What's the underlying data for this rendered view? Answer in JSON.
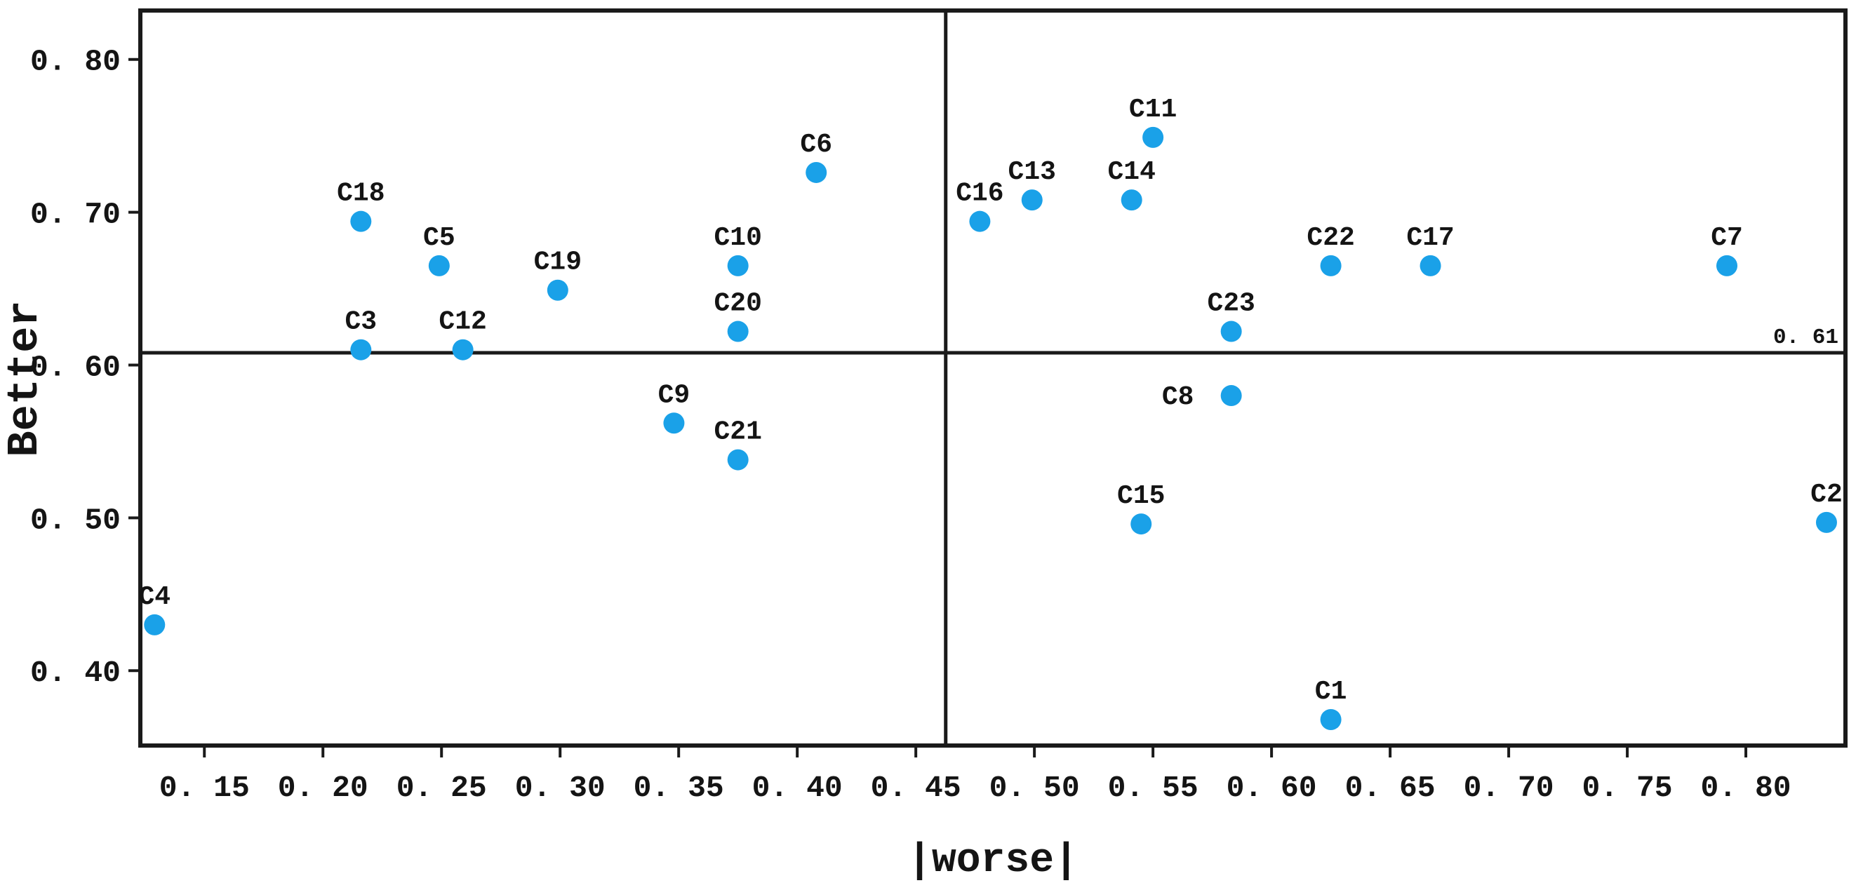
{
  "chart_data": {
    "type": "scatter",
    "title": "",
    "xlabel": "|worse|",
    "ylabel": "Better",
    "xlim": [
      0.123,
      0.842
    ],
    "ylim": [
      0.351,
      0.832
    ],
    "grid": false,
    "legend": "none",
    "point_color": "#1aa1e8",
    "line_color": "#1a1a1a",
    "x_ticks": [
      {
        "value": 0.15,
        "label": "0. 15"
      },
      {
        "value": 0.2,
        "label": "0. 20"
      },
      {
        "value": 0.25,
        "label": "0. 25"
      },
      {
        "value": 0.3,
        "label": "0. 30"
      },
      {
        "value": 0.35,
        "label": "0. 35"
      },
      {
        "value": 0.4,
        "label": "0. 40"
      },
      {
        "value": 0.45,
        "label": "0. 45"
      },
      {
        "value": 0.5,
        "label": "0. 50"
      },
      {
        "value": 0.55,
        "label": "0. 55"
      },
      {
        "value": 0.6,
        "label": "0. 60"
      },
      {
        "value": 0.65,
        "label": "0. 65"
      },
      {
        "value": 0.7,
        "label": "0. 70"
      },
      {
        "value": 0.75,
        "label": "0. 75"
      },
      {
        "value": 0.8,
        "label": "0. 80"
      }
    ],
    "y_ticks": [
      {
        "value": 0.4,
        "label": "0. 40"
      },
      {
        "value": 0.5,
        "label": "0. 50"
      },
      {
        "value": 0.6,
        "label": "0. 60"
      },
      {
        "value": 0.7,
        "label": "0. 70"
      },
      {
        "value": 0.8,
        "label": "0. 80"
      }
    ],
    "reference_lines": {
      "horizontal_y": 0.608,
      "horizontal_label": "0. 61",
      "vertical_x": 0.4626
    },
    "points": [
      {
        "label": "C1",
        "x": 0.625,
        "y": 0.368
      },
      {
        "label": "C2",
        "x": 0.834,
        "y": 0.497
      },
      {
        "label": "C3",
        "x": 0.216,
        "y": 0.61
      },
      {
        "label": "C4",
        "x": 0.129,
        "y": 0.43
      },
      {
        "label": "C5",
        "x": 0.249,
        "y": 0.665
      },
      {
        "label": "C6",
        "x": 0.408,
        "y": 0.726
      },
      {
        "label": "C7",
        "x": 0.792,
        "y": 0.665
      },
      {
        "label": "C8",
        "x": 0.583,
        "y": 0.58,
        "label_dx": -76,
        "label_dy": 12
      },
      {
        "label": "C9",
        "x": 0.348,
        "y": 0.562
      },
      {
        "label": "C10",
        "x": 0.375,
        "y": 0.665
      },
      {
        "label": "C11",
        "x": 0.55,
        "y": 0.749
      },
      {
        "label": "C12",
        "x": 0.259,
        "y": 0.61
      },
      {
        "label": "C13",
        "x": 0.499,
        "y": 0.708
      },
      {
        "label": "C14",
        "x": 0.541,
        "y": 0.708
      },
      {
        "label": "C15",
        "x": 0.545,
        "y": 0.496
      },
      {
        "label": "C16",
        "x": 0.477,
        "y": 0.694
      },
      {
        "label": "C17",
        "x": 0.667,
        "y": 0.665
      },
      {
        "label": "C18",
        "x": 0.216,
        "y": 0.694
      },
      {
        "label": "C19",
        "x": 0.299,
        "y": 0.649
      },
      {
        "label": "C20",
        "x": 0.375,
        "y": 0.622
      },
      {
        "label": "C21",
        "x": 0.375,
        "y": 0.538
      },
      {
        "label": "C22",
        "x": 0.625,
        "y": 0.665
      },
      {
        "label": "C23",
        "x": 0.583,
        "y": 0.622
      }
    ]
  }
}
